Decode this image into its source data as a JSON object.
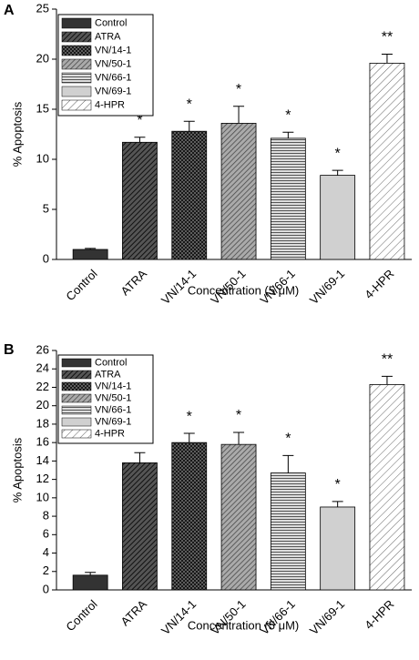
{
  "chart_data": [
    {
      "type": "bar",
      "panel": "A",
      "ylabel": "% Apoptosis",
      "xlabel": "Concentration (5 μM)",
      "categories": [
        "Control",
        "ATRA",
        "VN/14-1",
        "VN/50-1",
        "VN/66-1",
        "VN/69-1",
        "4-HPR"
      ],
      "values": [
        1.0,
        11.7,
        12.8,
        13.6,
        12.1,
        8.4,
        19.6
      ],
      "errors": [
        0.1,
        0.5,
        1.0,
        1.7,
        0.6,
        0.5,
        0.9
      ],
      "annotations": [
        null,
        "*",
        "*",
        "*",
        "*",
        "*",
        "**"
      ],
      "patterns": [
        "solid-dark",
        "diag-dark",
        "cross",
        "diag-grey",
        "horiz",
        "solid-light",
        "diag-light"
      ],
      "ylim": [
        0,
        25
      ],
      "yticks": [
        0,
        5,
        10,
        15,
        20,
        25
      ],
      "legend": "upper left"
    },
    {
      "type": "bar",
      "panel": "B",
      "ylabel": "% Apoptosis",
      "xlabel": "Concentration (5 μM)",
      "categories": [
        "Control",
        "ATRA",
        "VN/14-1",
        "VN/50-1",
        "VN/66-1",
        "VN/69-1",
        "4-HPR"
      ],
      "values": [
        1.6,
        13.8,
        16.0,
        15.8,
        12.7,
        9.0,
        22.3
      ],
      "errors": [
        0.3,
        1.1,
        1.0,
        1.3,
        1.9,
        0.6,
        0.9
      ],
      "annotations": [
        null,
        "*",
        "*",
        "*",
        "*",
        "*",
        "**"
      ],
      "patterns": [
        "solid-dark",
        "diag-dark",
        "cross",
        "diag-grey",
        "horiz",
        "solid-light",
        "diag-light"
      ],
      "ylim": [
        0,
        26
      ],
      "yticks": [
        0,
        2,
        4,
        6,
        8,
        10,
        12,
        14,
        16,
        18,
        20,
        22,
        24,
        26
      ],
      "legend": "upper left"
    }
  ]
}
